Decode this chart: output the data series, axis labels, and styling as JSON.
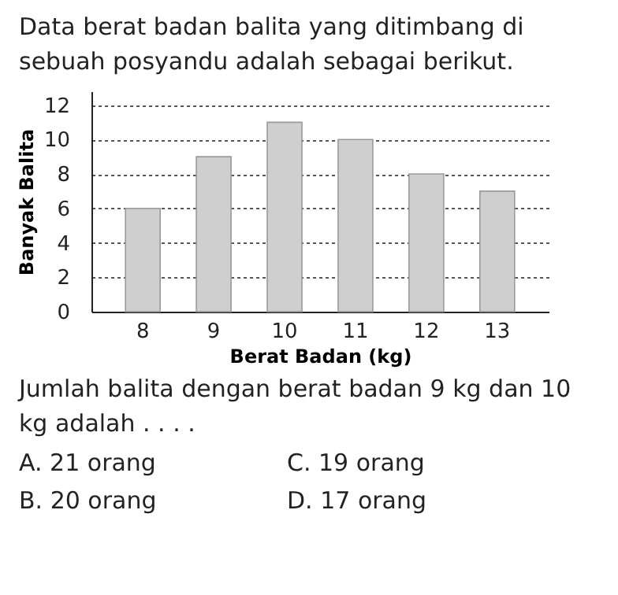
{
  "chart_data": {
    "type": "bar",
    "title": "Data berat badan balita yang ditimbang di sebuah posyandu adalah sebagai berikut.",
    "xlabel": "Berat Badan (kg)",
    "ylabel": "Banyak Balita",
    "categories": [
      "8",
      "9",
      "10",
      "11",
      "12",
      "13"
    ],
    "values": [
      6,
      9,
      11,
      10,
      8,
      7
    ],
    "color": "#cfcfcf",
    "ylim": [
      0,
      12.8
    ],
    "yticks": [
      0,
      2,
      4,
      6,
      8,
      10,
      12
    ],
    "grid": "y",
    "annotations": [
      "Jumlah balita dengan berat badan 9 kg dan 10 kg adalah . . . .",
      "A.  21 orang",
      "C.  19 orang",
      "B.  20 orang",
      "D.  17 orang"
    ]
  }
}
